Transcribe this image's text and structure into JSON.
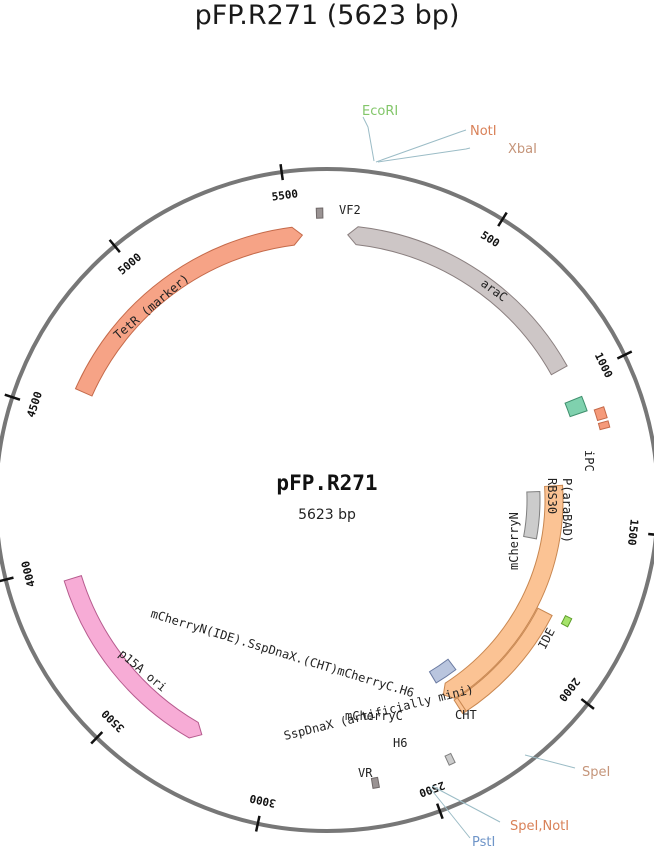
{
  "title": "pFP.R271 (5623 bp)",
  "center_name": "pFP.R271",
  "center_size": "5623 bp",
  "total_bp": 5623,
  "ticks": [
    {
      "bp": 500,
      "label": "500"
    },
    {
      "bp": 1000,
      "label": "1000"
    },
    {
      "bp": 1500,
      "label": "1500"
    },
    {
      "bp": 2000,
      "label": "2000"
    },
    {
      "bp": 2500,
      "label": "2500"
    },
    {
      "bp": 3000,
      "label": "3000"
    },
    {
      "bp": 3500,
      "label": "3500"
    },
    {
      "bp": 4000,
      "label": "4000"
    },
    {
      "bp": 4500,
      "label": "4500"
    },
    {
      "bp": 5000,
      "label": "5000"
    },
    {
      "bp": 5500,
      "label": "5500"
    }
  ],
  "features": [
    {
      "id": "araC",
      "label": "araC",
      "start": 70,
      "end": 950,
      "strand": -1,
      "lane": "outer",
      "color": "#cdc6c6",
      "stroke": "#8a7f7f",
      "label_style": "arc"
    },
    {
      "id": "tetr",
      "label": "TetR (marker)",
      "start": 4590,
      "end": 5540,
      "strand": 1,
      "lane": "outer",
      "color": "#f6a386",
      "stroke": "#c56a4a",
      "label_style": "arc"
    },
    {
      "id": "p15a",
      "label": "p15A ori",
      "start": 3250,
      "end": 3950,
      "strand": -1,
      "lane": "outer",
      "color": "#f7acd6",
      "stroke": "#b65b8e",
      "label_style": "arc"
    },
    {
      "id": "mcherry_full",
      "label": "mCherryN(IDE).SspDnaX.(CHT)mCherryC.H6",
      "start": 1350,
      "end": 2330,
      "strand": 1,
      "lane": "mid",
      "color": "#fbc394",
      "stroke": "#c98750",
      "label_style": "text"
    },
    {
      "id": "mcherryn",
      "label": "mCherryN",
      "start": 1370,
      "end": 1570,
      "strand": 0,
      "lane": "inner",
      "color": "#cccccc",
      "stroke": "#7f7f7f",
      "label_style": "arc"
    },
    {
      "id": "mcherryc",
      "label": "mCherryC",
      "start": 2230,
      "end": 2330,
      "strand": 0,
      "lane": "inner",
      "color": "#b9c5de",
      "stroke": "#6a7aa1",
      "label_style": "text"
    },
    {
      "id": "sspdnax",
      "label": "SspDnaX (artificially mini)",
      "start": 1830,
      "end": 2290,
      "strand": 0,
      "lane": "mid2",
      "color": "#fbc394",
      "stroke": "#c98750",
      "label_style": "text"
    },
    {
      "id": "ipc",
      "label": "iPC",
      "start": 1060,
      "end": 1110,
      "strand": 0,
      "lane": "outer",
      "color": "#7fd1ae",
      "stroke": "#3f8f6d",
      "label_style": "text"
    },
    {
      "id": "ide",
      "label": "IDE",
      "start": 1810,
      "end": 1840,
      "strand": 0,
      "lane": "outer2",
      "color": "#a6e36b",
      "stroke": "#5f9e2b",
      "label_style": "text"
    },
    {
      "id": "cht",
      "label": "CHT",
      "start": 2290,
      "end": 2305,
      "strand": 0,
      "lane": "mid2",
      "color": "#fbc394",
      "stroke": "#c98750",
      "label_style": "text"
    },
    {
      "id": "h6",
      "label": "H6",
      "start": 2405,
      "end": 2425,
      "strand": 0,
      "lane": "small",
      "color": "#cccccc",
      "stroke": "#7f7f7f",
      "label_style": "text"
    },
    {
      "id": "vf2",
      "label": "VF2",
      "start": 5590,
      "end": 5610,
      "strand": 0,
      "lane": "small",
      "color": "#9a9393",
      "stroke": "#6f6868",
      "label_style": "text"
    },
    {
      "id": "vr",
      "label": "VR",
      "start": 2650,
      "end": 2670,
      "strand": 0,
      "lane": "small",
      "color": "#9a9393",
      "stroke": "#6f6868",
      "label_style": "text"
    },
    {
      "id": "rbs30",
      "label": "RBS30",
      "start": 1160,
      "end": 1180,
      "strand": 0,
      "lane": "small",
      "color": "#f59a7a",
      "stroke": "#c56a4a",
      "label_style": "text"
    },
    {
      "id": "parabad",
      "label": "P(araBAD)",
      "start": 1115,
      "end": 1150,
      "strand": 0,
      "lane": "small",
      "color": "#f59a7a",
      "stroke": "#c56a4a",
      "label_style": "text"
    }
  ],
  "sites": [
    {
      "name": "EcoRI",
      "color": "#83c66a"
    },
    {
      "name": "NotI",
      "color": "#d98158"
    },
    {
      "name": "XbaI",
      "color": "#c5957a"
    },
    {
      "name": "SpeI",
      "color": "#c5957a"
    },
    {
      "name": "SpeI,NotI",
      "color": "#d98158"
    },
    {
      "name": "PstI",
      "color": "#6f95c8"
    }
  ]
}
